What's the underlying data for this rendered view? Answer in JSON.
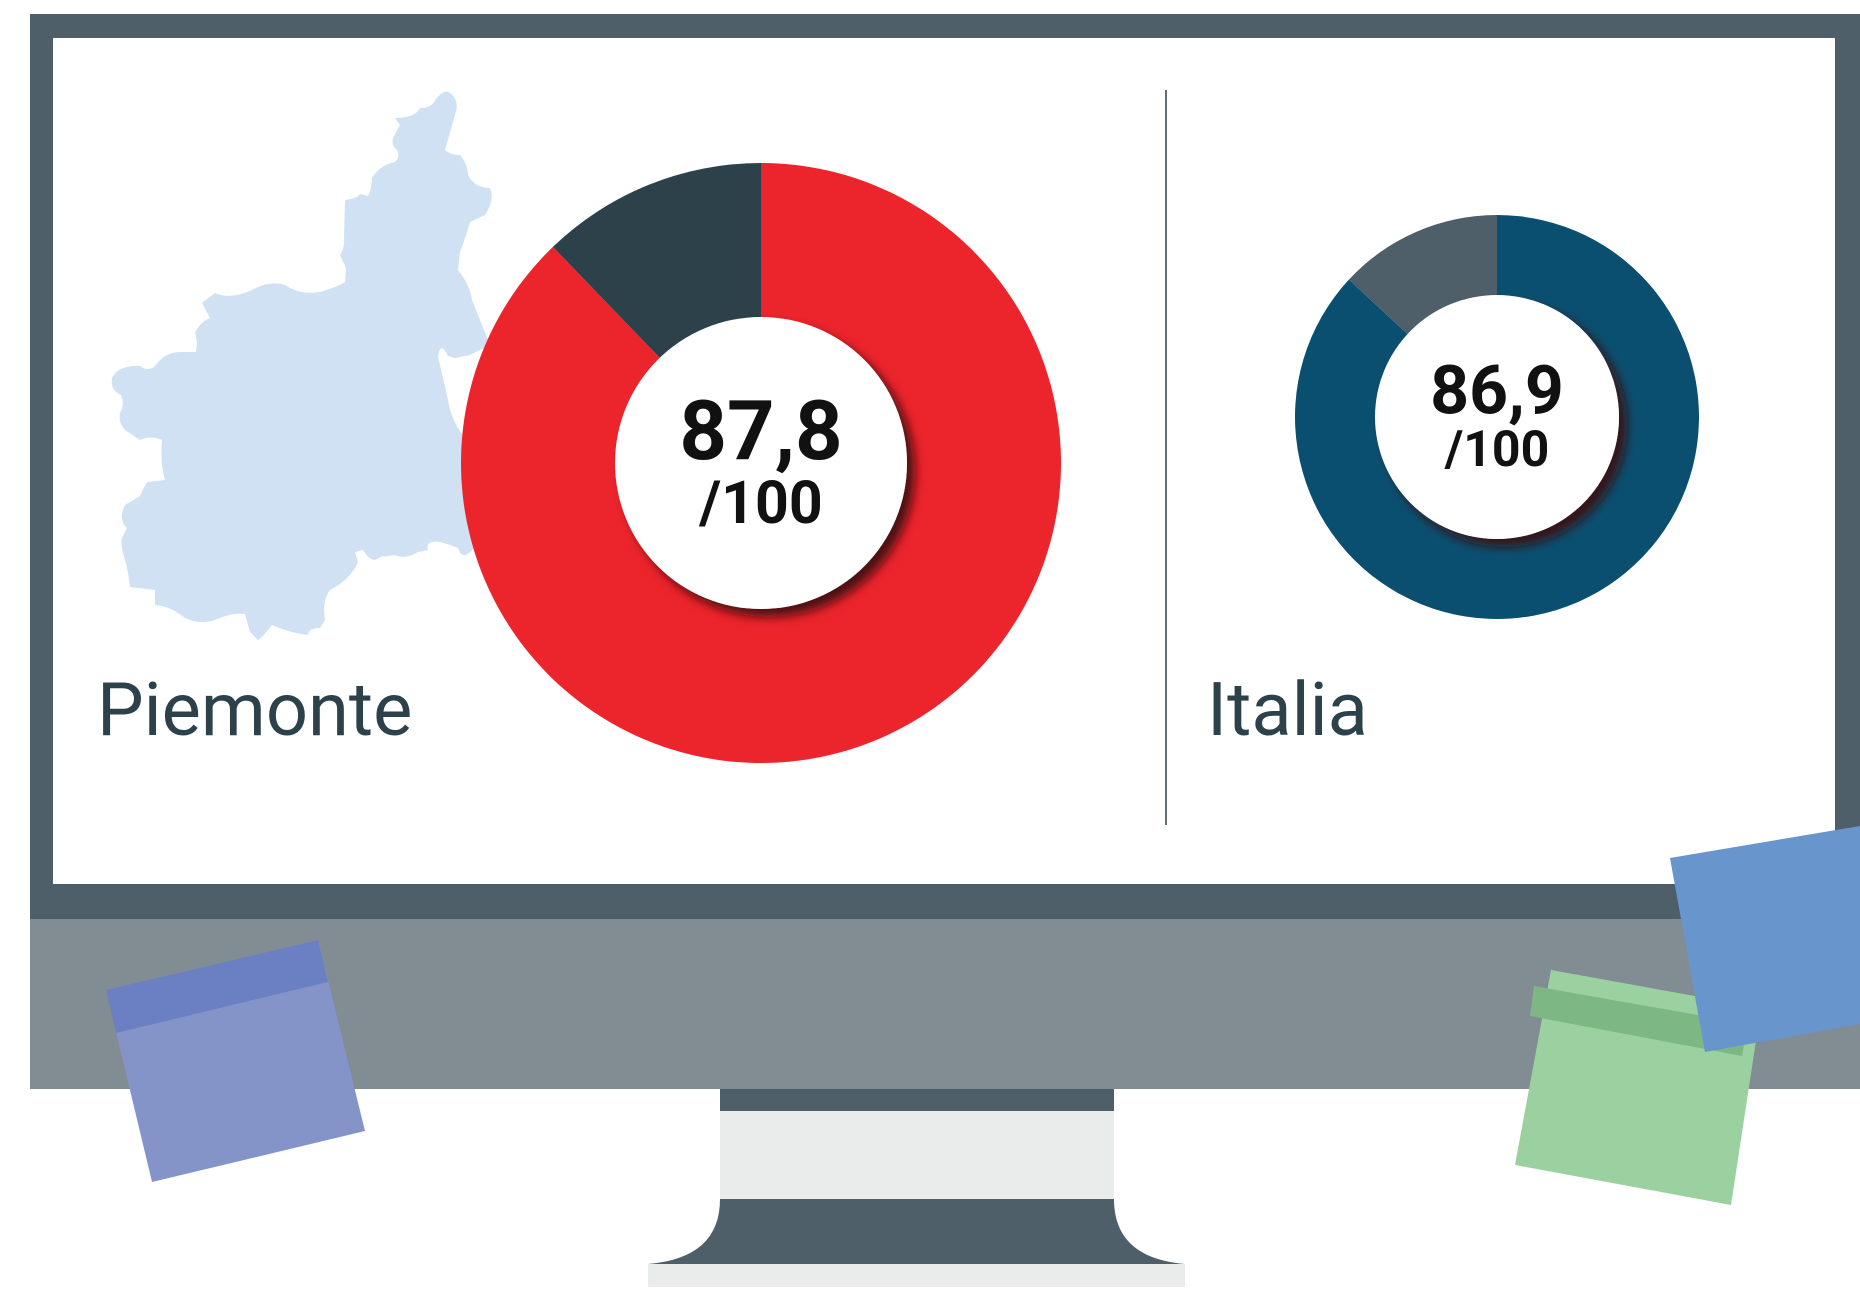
{
  "chart_data": [
    {
      "type": "pie",
      "title": "Piemonte",
      "values": [
        87.8
      ],
      "value_labels": [
        "87,8"
      ],
      "total": 100,
      "total_label": "/100",
      "color": "#ec242c",
      "rest_color": "#2d414b"
    },
    {
      "type": "pie",
      "title": "Italia",
      "values": [
        86.9
      ],
      "value_labels": [
        "86,9"
      ],
      "total": 100,
      "total_label": "/100",
      "color": "#0b4f70",
      "rest_color": "#4f5f69"
    }
  ]
}
